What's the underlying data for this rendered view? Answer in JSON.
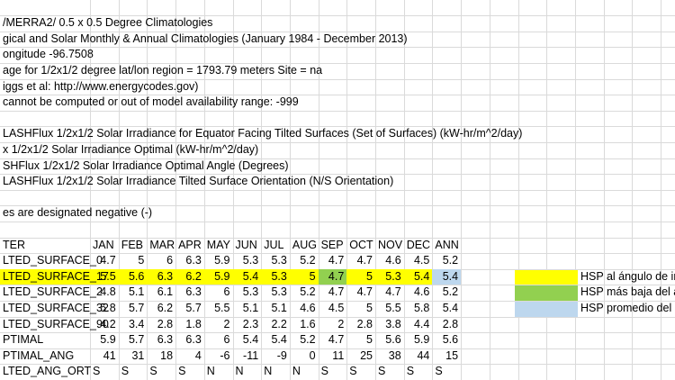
{
  "notes": [
    "/MERRA2/ 0.5 x 0.5 Degree Climatologies",
    "gical and Solar Monthly & Annual Climatologies (January 1984 - December 2013)",
    "ongitude -96.7508",
    "age for 1/2x1/2 degree lat/lon region = 1793.79 meters   Site = na",
    "iggs et al: http://www.energycodes.gov)",
    "cannot be computed or out of model availability range: -999",
    "",
    "LASHFlux 1/2x1/2 Solar Irradiance for Equator Facing Tilted Surfaces (Set of Surfaces) (kW-hr/m^2/day)",
    "x 1/2x1/2 Solar Irradiance Optimal (kW-hr/m^2/day)",
    "SHFlux 1/2x1/2 Solar Irradiance Optimal Angle (Degrees)",
    "LASHFlux 1/2x1/2 Solar Irradiance Tilted Surface Orientation (N/S Orientation)",
    "",
    "es are designated negative (-)"
  ],
  "table": {
    "header": [
      "TER",
      "JAN",
      "FEB",
      "MAR",
      "APR",
      "MAY",
      "JUN",
      "JUL",
      "AUG",
      "SEP",
      "OCT",
      "NOV",
      "DEC",
      "ANN"
    ],
    "rows": [
      {
        "label": "LTED_SURFACE_0",
        "values": [
          4.7,
          5,
          6,
          6.3,
          5.9,
          5.3,
          5.3,
          5.2,
          4.7,
          4.7,
          4.6,
          4.5,
          5.2
        ]
      },
      {
        "label": "LTED_SURFACE_17",
        "values": [
          5.5,
          5.6,
          6.3,
          6.2,
          5.9,
          5.4,
          5.3,
          5,
          4.7,
          5,
          5.3,
          5.4,
          5.4
        ]
      },
      {
        "label": "LTED_SURFACE_2",
        "values": [
          4.8,
          5.1,
          6.1,
          6.3,
          6,
          5.3,
          5.3,
          5.2,
          4.7,
          4.7,
          4.7,
          4.6,
          5.2
        ]
      },
      {
        "label": "LTED_SURFACE_32",
        "values": [
          5.8,
          5.7,
          6.2,
          5.7,
          5.5,
          5.1,
          5.1,
          4.6,
          4.5,
          5,
          5.5,
          5.8,
          5.4
        ]
      },
      {
        "label": "LTED_SURFACE_90",
        "values": [
          4.2,
          3.4,
          2.8,
          1.8,
          2,
          2.3,
          2.2,
          1.6,
          2,
          2.8,
          3.8,
          4.4,
          2.8
        ]
      },
      {
        "label": "PTIMAL",
        "values": [
          5.9,
          5.7,
          6.3,
          6.3,
          6,
          5.4,
          5.4,
          5.2,
          4.7,
          5,
          5.6,
          5.9,
          5.6
        ]
      },
      {
        "label": "PTIMAL_ANG",
        "values": [
          41,
          31,
          18,
          4,
          -6,
          -11,
          -9,
          0,
          11,
          25,
          38,
          44,
          15
        ]
      },
      {
        "label": "LTED_ANG_ORT",
        "values": [
          "S",
          "S",
          "S",
          "S",
          "N",
          "N",
          "N",
          "N",
          "S",
          "S",
          "S",
          "S",
          "S"
        ]
      }
    ]
  },
  "legend": [
    {
      "color": "#ffff00",
      "label": "HSP al ángulo de inc"
    },
    {
      "color": "#92d050",
      "label": "HSP más baja del añ"
    },
    {
      "color": "#bdd7ee",
      "label": "HSP promedio del a"
    }
  ]
}
